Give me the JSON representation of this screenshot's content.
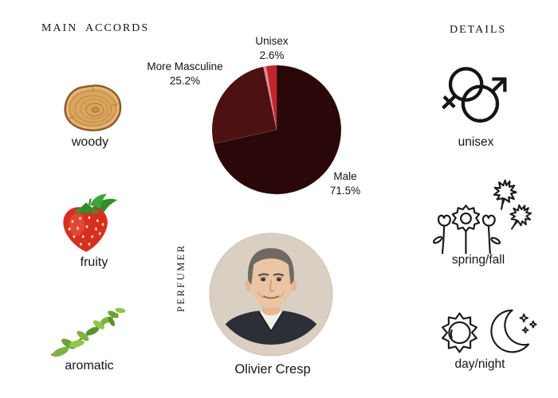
{
  "page": {
    "background": "#ffffff",
    "text_color": "#141414"
  },
  "main_accords": {
    "title": "MAIN ACCORDS",
    "items": [
      {
        "label": "woody",
        "icon": "wood-slice-photo"
      },
      {
        "label": "fruity",
        "icon": "strawberry-photo"
      },
      {
        "label": "aromatic",
        "icon": "herb-sprig-photo"
      }
    ]
  },
  "details": {
    "title": "DETAILS",
    "items": [
      {
        "label": "unisex",
        "icon": "male-female-symbols-icon"
      },
      {
        "label": "spring/fall",
        "icon": "flowers-and-maple-leaves-icon"
      },
      {
        "label": "day/night",
        "icon": "sun-and-moon-icon"
      }
    ]
  },
  "perfumer": {
    "section_label": "PERFUMER",
    "name": "Olivier Cresp",
    "photo": "olivier-cresp-portrait"
  },
  "chart_data": {
    "type": "pie",
    "title": "",
    "direction": "clockwise",
    "start_angle_deg": 0,
    "legend": "none",
    "slices": [
      {
        "label": "Male",
        "value": 71.5,
        "color": "#2a0708"
      },
      {
        "label": "More Masculine",
        "value": 25.2,
        "color": "#4d1013"
      },
      {
        "label": "",
        "value": 0.7,
        "color": "#e28a8e"
      },
      {
        "label": "Unisex",
        "value": 2.6,
        "color": "#c3242a"
      }
    ]
  }
}
